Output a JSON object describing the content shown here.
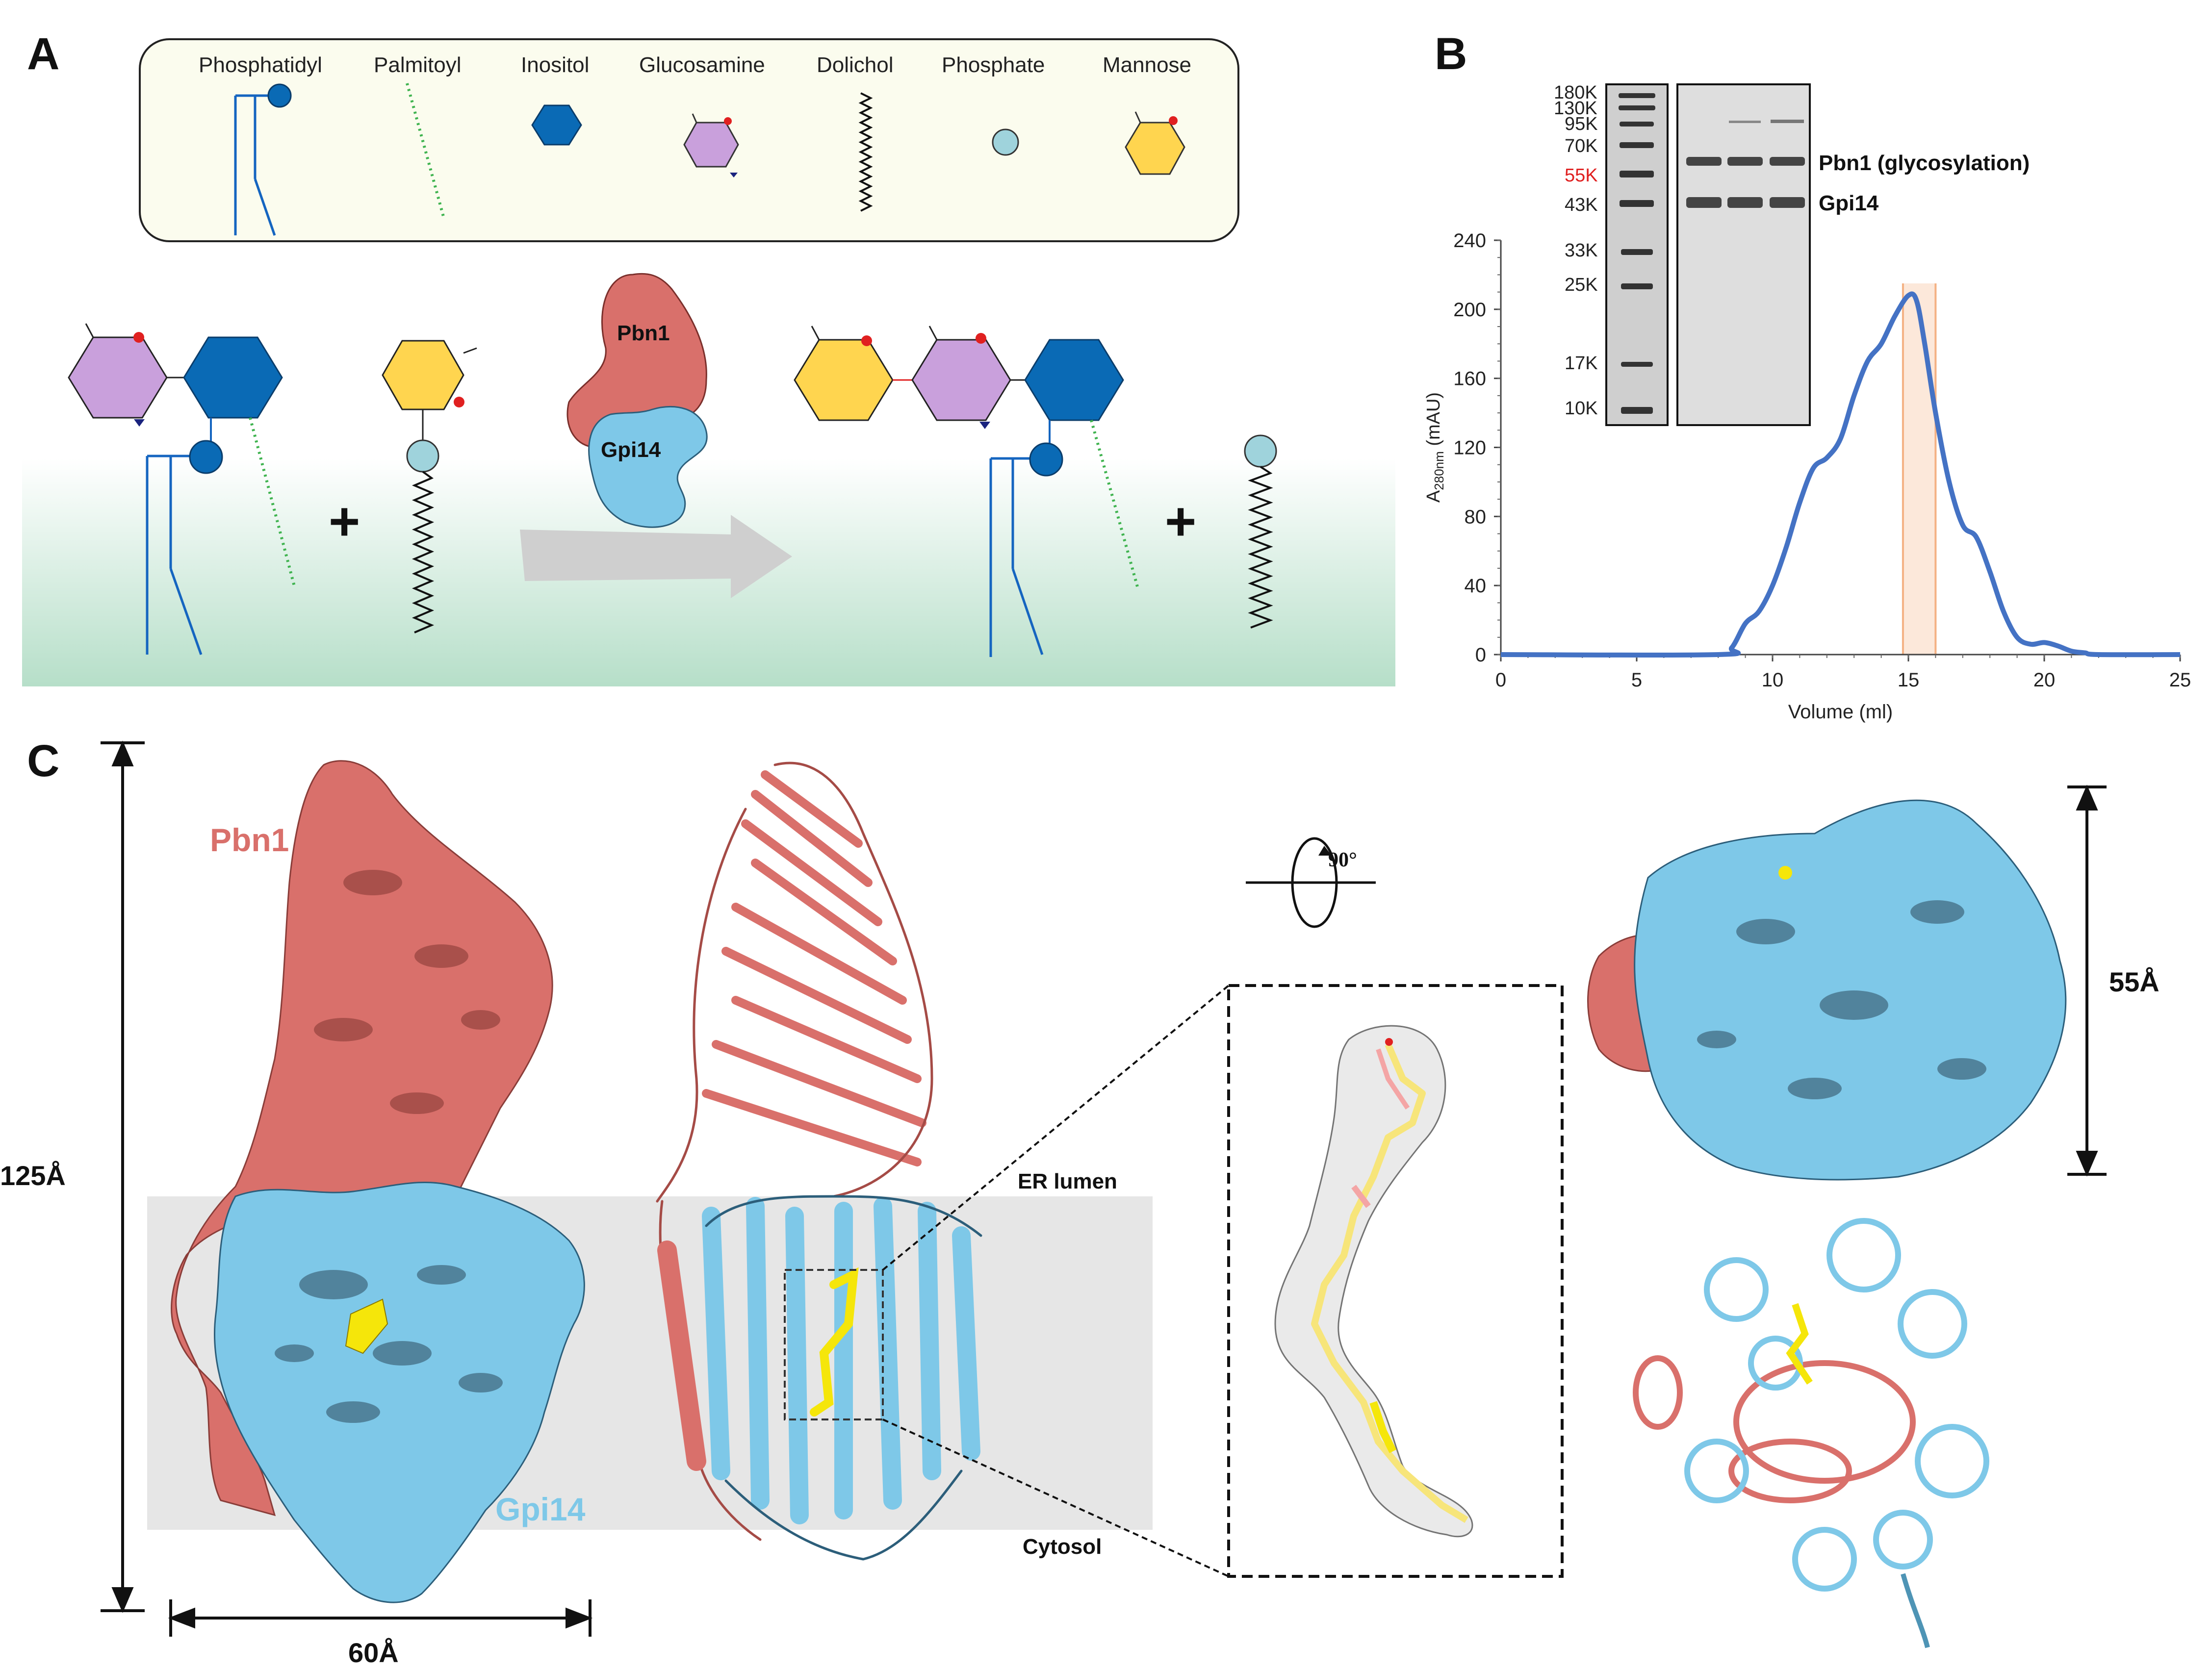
{
  "panels": {
    "a": {
      "letter": "A",
      "legend": {
        "phosphatidyl": "Phosphatidyl",
        "palmitoyl": "Palmitoyl",
        "inositol": "Inositol",
        "glucosamine": "Glucosamine",
        "dolichol": "Dolichol",
        "phosphate": "Phosphate",
        "mannose": "Mannose"
      },
      "plus": "+",
      "enzyme_top": "Pbn1",
      "enzyme_bottom": "Gpi14"
    },
    "b": {
      "letter": "B",
      "gel_markers": [
        "180K",
        "130K",
        "95K",
        "70K",
        "55K",
        "43K",
        "33K",
        "25K",
        "17K",
        "10K"
      ],
      "gel_highlight_marker": "55K",
      "band_labels": {
        "pbn1": "Pbn1 (glycosylation)",
        "gpi14": "Gpi14"
      }
    },
    "c": {
      "letter": "C",
      "label_pbn1": "Pbn1",
      "label_gpi14": "Gpi14",
      "dim_height": "125Å",
      "dim_width": "60Å",
      "dim_top": "55Å",
      "rotation": "90°",
      "er_lumen": "ER lumen",
      "cytosol": "Cytosol"
    }
  },
  "colors": {
    "pbn1": "#d9706b",
    "gpi14": "#7ec8e8",
    "inositol": "#0a6ab5",
    "glucosamine": "#c9a0dc",
    "mannose": "#ffd54f",
    "phosphate": "#9fd3dc",
    "chromatogram": "#4472c4",
    "fraction_band": "#f8cbad",
    "ligand": "#f5e60a",
    "membrane": "#e6e6e6"
  },
  "chart_data": {
    "type": "line",
    "xlabel": "Volume (ml)",
    "ylabel_main": "A",
    "ylabel_sub": "280nm",
    "ylabel_unit": " (mAU)",
    "xlim": [
      0,
      25
    ],
    "ylim": [
      0,
      240
    ],
    "xticks": [
      0,
      5,
      10,
      15,
      20,
      25
    ],
    "yticks": [
      0,
      40,
      80,
      120,
      160,
      200,
      240
    ],
    "highlight_range": [
      14.8,
      16.0
    ],
    "x": [
      0,
      8.0,
      8.5,
      9.0,
      9.5,
      10.0,
      10.5,
      11.0,
      11.5,
      12.0,
      12.5,
      13.0,
      13.5,
      14.0,
      14.5,
      15.0,
      15.3,
      15.6,
      16.0,
      16.5,
      17.0,
      17.5,
      18.0,
      18.5,
      19.0,
      19.5,
      20.0,
      20.5,
      21.0,
      21.5,
      22.0,
      25
    ],
    "y": [
      0,
      0,
      4,
      18,
      25,
      40,
      62,
      88,
      108,
      114,
      125,
      150,
      170,
      180,
      196,
      208,
      205,
      180,
      140,
      100,
      75,
      68,
      48,
      25,
      10,
      6,
      7,
      5,
      2,
      1,
      0,
      0
    ]
  }
}
